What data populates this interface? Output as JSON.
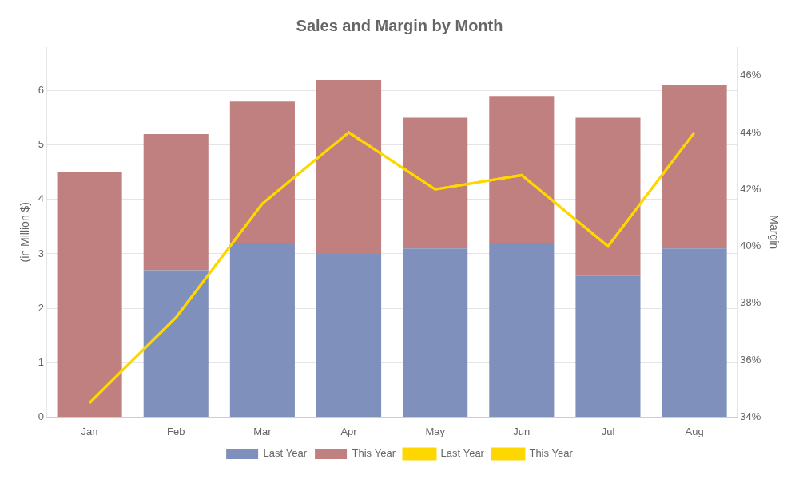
{
  "chart_data": {
    "type": "bar",
    "title": "Sales and Margin by Month",
    "ylabel": "(in Million $)",
    "y2label": "Margin",
    "categories": [
      "Jan",
      "Feb",
      "Mar",
      "Apr",
      "May",
      "Jun",
      "Jul",
      "Aug"
    ],
    "stacked": true,
    "grid": true,
    "legend": "bottom",
    "ylim": [
      0,
      6.8
    ],
    "yticks": [
      0,
      1,
      2,
      3,
      4,
      5,
      6
    ],
    "y2lim": [
      34,
      47
    ],
    "y2ticks": [
      {
        "value": 34,
        "label": "34%"
      },
      {
        "value": 36,
        "label": "36%"
      },
      {
        "value": 38,
        "label": "38%"
      },
      {
        "value": 40,
        "label": "40%"
      },
      {
        "value": 42,
        "label": "42%"
      },
      {
        "value": 44,
        "label": "44%"
      },
      {
        "value": 46,
        "label": "46%"
      }
    ],
    "series": [
      {
        "name": "Last Year",
        "type": "bar",
        "color": "#8090BC",
        "values": [
          0.0,
          2.7,
          3.2,
          3.0,
          3.1,
          3.2,
          2.6,
          3.1
        ]
      },
      {
        "name": "This Year",
        "type": "bar",
        "color": "#C08080",
        "values": [
          4.5,
          2.5,
          2.6,
          3.2,
          2.4,
          2.7,
          2.9,
          3.0
        ]
      },
      {
        "name": "Last Year",
        "type": "line",
        "axis": "y2",
        "color": "#FFD700",
        "values": [
          34.5,
          37.5,
          41.5,
          44.0,
          42.0,
          42.5,
          40.0,
          44.0
        ]
      },
      {
        "name": "This Year",
        "type": "line",
        "axis": "y2",
        "color": "#FFD700",
        "values": [
          34.5,
          37.5,
          41.5,
          44.0,
          42.0,
          42.5,
          40.0,
          44.0
        ]
      }
    ]
  }
}
